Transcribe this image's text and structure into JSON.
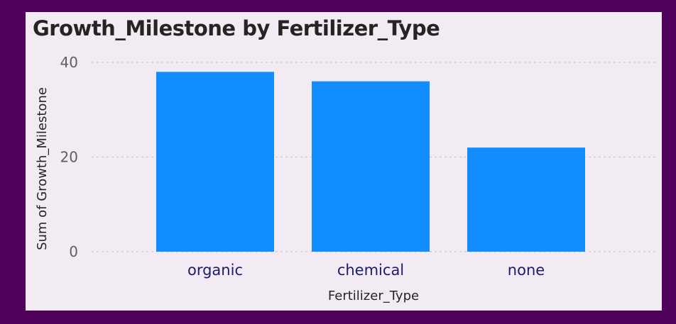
{
  "chart_data": {
    "type": "bar",
    "title": "Growth_Milestone by Fertilizer_Type",
    "xlabel": "Fertilizer_Type",
    "ylabel": "Sum of Growth_Milestone",
    "categories": [
      "organic",
      "chemical",
      "none"
    ],
    "values": [
      38,
      36,
      22
    ],
    "ylim": [
      0,
      40
    ],
    "yticks": [
      0,
      20,
      40
    ],
    "grid": true,
    "legend": "none",
    "bar_color": "#118dff"
  }
}
